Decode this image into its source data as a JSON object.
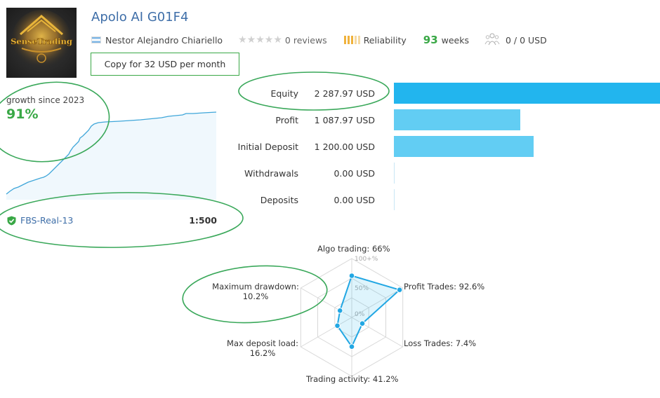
{
  "header": {
    "logo_text": "SenseTrading",
    "title": "Apolo AI G01F4",
    "author": "Nestor Alejandro Chiariello",
    "reviews": "0 reviews",
    "reliability_label": "Reliability",
    "weeks_value": "93",
    "weeks_label": "weeks",
    "subscribers": "0 / 0 USD",
    "copy_button": "Copy for 32 USD per month"
  },
  "growth": {
    "label": "growth since 2023",
    "value": "91%"
  },
  "account": {
    "broker": "FBS-Real-13",
    "leverage": "1:500"
  },
  "financials": [
    {
      "label": "Equity",
      "value": "2 287.97 USD",
      "amount": 2287.97
    },
    {
      "label": "Profit",
      "value": "1 087.97 USD",
      "amount": 1087.97
    },
    {
      "label": "Initial Deposit",
      "value": "1 200.00 USD",
      "amount": 1200.0
    },
    {
      "label": "Withdrawals",
      "value": "0.00 USD",
      "amount": 0
    },
    {
      "label": "Deposits",
      "value": "0.00 USD",
      "amount": 0
    }
  ],
  "radar": {
    "axis_ticks": [
      "100+%",
      "50%",
      "0%"
    ],
    "metrics": [
      {
        "label": "Algo trading: 66%",
        "value": 66
      },
      {
        "label": "Profit Trades: 92.6%",
        "value": 92.6
      },
      {
        "label": "Loss Trades: 7.4%",
        "value": 7.4
      },
      {
        "label": "Trading activity: 41.2%",
        "value": 41.2
      },
      {
        "label": "Max deposit load:",
        "label2": "16.2%",
        "value": 16.2
      },
      {
        "label": "Maximum drawdown:",
        "label2": "10.2%",
        "value": 10.2
      }
    ]
  },
  "colors": {
    "title_blue": "#3e6ea8",
    "green": "#39a846",
    "equity_bar": "#22b5ee",
    "bar_light": "#62cdf3",
    "annotation": "#3aa85a"
  }
}
